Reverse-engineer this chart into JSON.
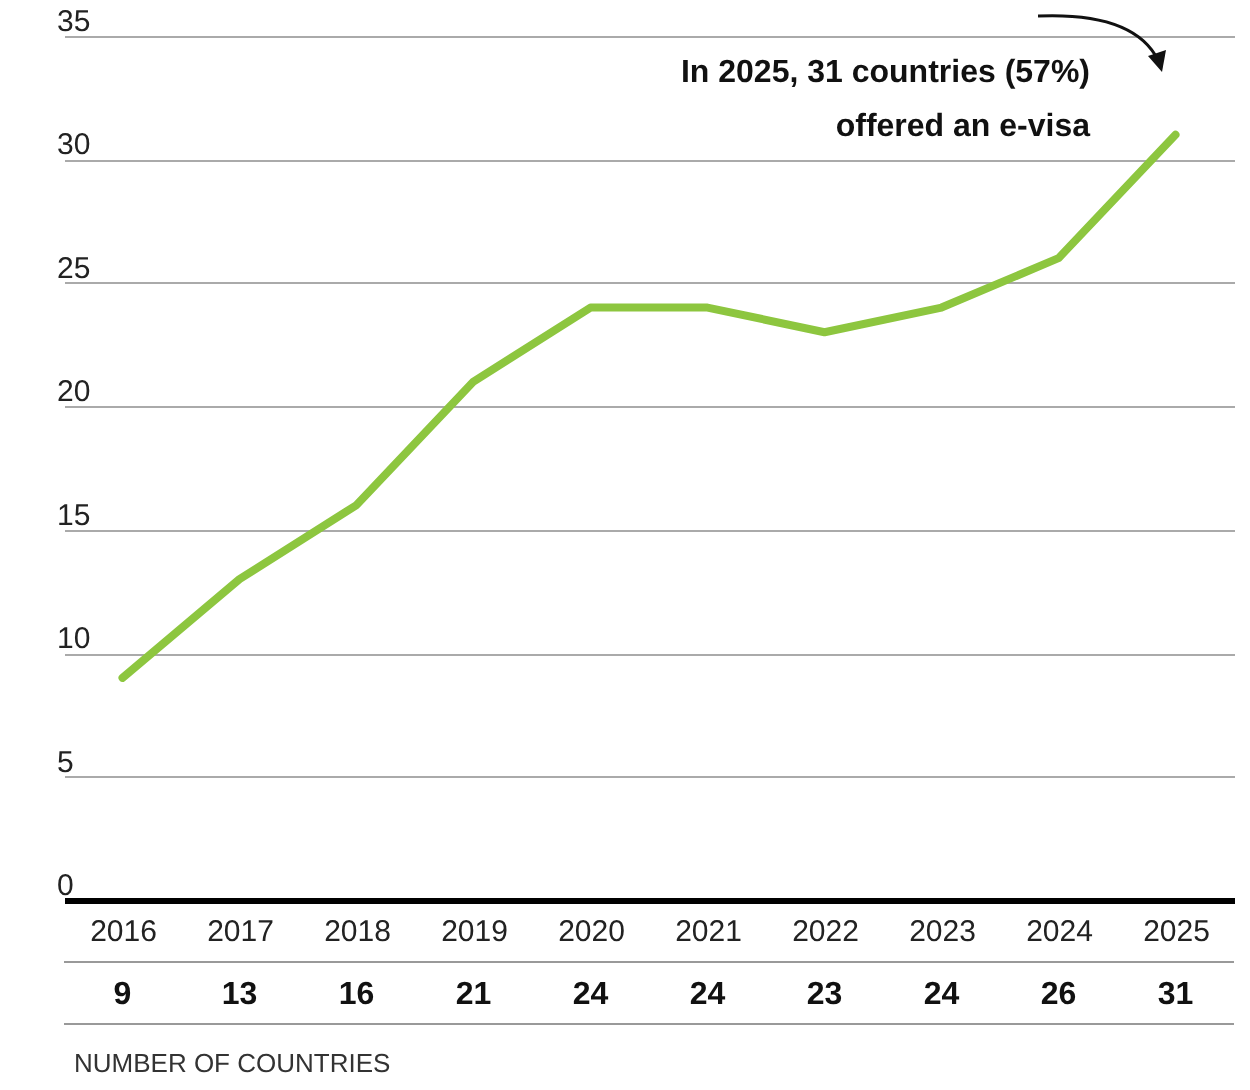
{
  "chart_data": {
    "type": "line",
    "categories": [
      "2016",
      "2017",
      "2018",
      "2019",
      "2020",
      "2021",
      "2022",
      "2023",
      "2024",
      "2025"
    ],
    "series": [
      {
        "color": "#8dc63f",
        "values": [
          9,
          13,
          16,
          21,
          24,
          24,
          23,
          24,
          26,
          31
        ]
      }
    ],
    "ylim": [
      0,
      35
    ],
    "yticks": [
      0,
      5,
      10,
      15,
      20,
      25,
      30,
      35
    ],
    "grid": "y",
    "marker": "none",
    "line_style": "solid",
    "data_labels": true,
    "annotations": [
      "In 2025, 31 countries (57%)\noffered an e-visa",
      "NUMBER OF COUNTRIES"
    ]
  }
}
